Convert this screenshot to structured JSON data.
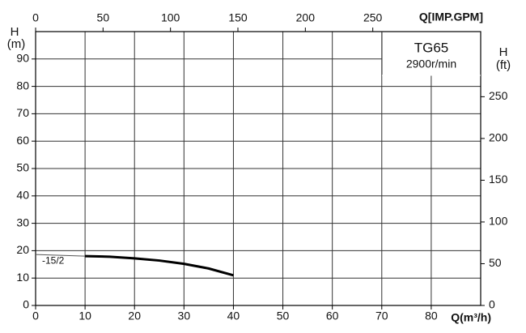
{
  "chart_data": {
    "type": "line",
    "annotation": {
      "model": "TG65",
      "speed": "2900r/min"
    },
    "y_label": {
      "symbol": "H",
      "unit": "(m)"
    },
    "y2_label": {
      "symbol": "H",
      "unit": "(ft)"
    },
    "x_label": "Q(m³/h)",
    "x2_label": "Q[IMP.GPM]",
    "xlim": [
      0,
      90
    ],
    "xticks": [
      0,
      10,
      20,
      30,
      40,
      50,
      60,
      70,
      80
    ],
    "ylim": [
      0,
      100
    ],
    "yticks": [
      0,
      10,
      20,
      30,
      40,
      50,
      60,
      70,
      80,
      90
    ],
    "x2lim": [
      0,
      330
    ],
    "x2ticks": [
      0,
      50,
      100,
      150,
      200,
      250
    ],
    "y2lim": [
      0,
      328
    ],
    "y2ticks": [
      0,
      50,
      100,
      150,
      200,
      250
    ],
    "grid": true,
    "series": [
      {
        "name": "-15/2",
        "color": "#000000",
        "x": [
          10,
          15,
          20,
          25,
          30,
          35,
          40
        ],
        "values": [
          18,
          17.8,
          17.2,
          16.4,
          15.2,
          13.5,
          11
        ]
      }
    ],
    "extension": {
      "x": [
        0,
        10
      ],
      "values": [
        18.6,
        18
      ]
    }
  }
}
